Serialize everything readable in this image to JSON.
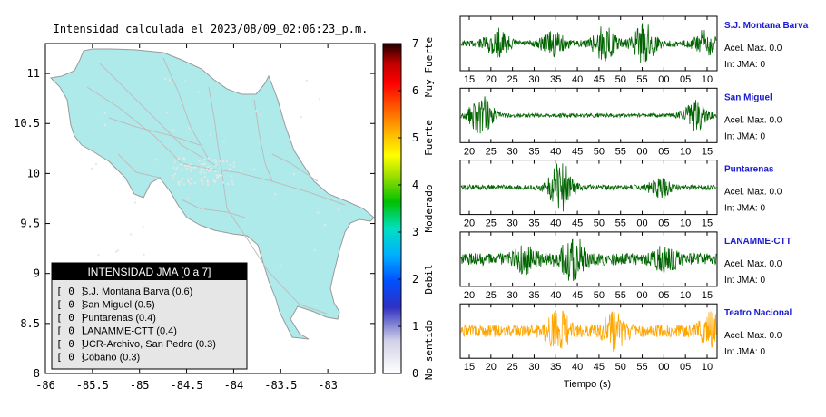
{
  "map": {
    "title": "Intensidad calculada el 2023/08/09_02:06:23_p.m.",
    "x_ticks": [
      "-86",
      "-85.5",
      "-85",
      "-84.5",
      "-84",
      "-83.5",
      "-83"
    ],
    "y_ticks": [
      "11",
      "10.5",
      "10",
      "9.5",
      "9",
      "8.5",
      "8"
    ],
    "xlim": [
      -86,
      -82.5
    ],
    "ylim": [
      8,
      11.3
    ],
    "colors": {
      "land": "#aeeaea",
      "border": "#9a9a9a",
      "roads": "#bdbdbd",
      "dots": "#e6e6e6"
    }
  },
  "legend": {
    "title": "INTENSIDAD JMA [0 a 7]",
    "items": [
      {
        "badge": "[ 0 ]",
        "label": "S.J. Montana Barva (0.6)"
      },
      {
        "badge": "[ 0 ]",
        "label": "San Miguel (0.5)"
      },
      {
        "badge": "[ 0 ]",
        "label": "Puntarenas (0.4)"
      },
      {
        "badge": "[ 0 ]",
        "label": "LANAMME-CTT (0.4)"
      },
      {
        "badge": "[ 0 ]",
        "label": "UCR-Archivo, San Pedro (0.3)"
      },
      {
        "badge": "[ 0 ]",
        "label": "Cobano (0.3)"
      }
    ]
  },
  "colorbar": {
    "ticks": [
      "0",
      "1",
      "2",
      "3",
      "4",
      "5",
      "6",
      "7"
    ],
    "levels": [
      "No sentido",
      "Debil",
      "Moderado",
      "Fuerte",
      "Muy Fuerte"
    ],
    "range": [
      0,
      7
    ]
  },
  "chart_data": {
    "type": "line",
    "xlabel": "Tiempo (s)",
    "y_info_label_accel": "Acel. Max.",
    "y_info_label_int": "Int JMA:",
    "series": [
      {
        "name": "S.J. Montana Barva",
        "color": "#006400",
        "accel_max": "0.0",
        "int_jma": "0",
        "ticks": [
          "15",
          "20",
          "25",
          "30",
          "35",
          "40",
          "45",
          "50",
          "55",
          "00",
          "05",
          "10"
        ],
        "bursts": [
          [
            0.14,
            0.55
          ],
          [
            0.36,
            0.45
          ],
          [
            0.56,
            0.65
          ],
          [
            0.72,
            0.8
          ],
          [
            0.96,
            0.5
          ]
        ],
        "base": 0.12
      },
      {
        "name": "San Miguel",
        "color": "#006400",
        "accel_max": "0.0",
        "int_jma": "0",
        "ticks": [
          "20",
          "25",
          "30",
          "35",
          "40",
          "45",
          "50",
          "55",
          "00",
          "05",
          "10",
          "15"
        ],
        "bursts": [
          [
            0.08,
            0.8
          ],
          [
            0.92,
            0.6
          ]
        ],
        "base": 0.08
      },
      {
        "name": "Puntarenas",
        "color": "#006400",
        "accel_max": "0.0",
        "int_jma": "0",
        "ticks": [
          "20",
          "25",
          "30",
          "35",
          "40",
          "45",
          "50",
          "55",
          "00",
          "05",
          "10",
          "15"
        ],
        "bursts": [
          [
            0.39,
            1.0
          ],
          [
            0.78,
            0.35
          ]
        ],
        "base": 0.1
      },
      {
        "name": "LANAMME-CTT",
        "color": "#006400",
        "accel_max": "0.0",
        "int_jma": "0",
        "ticks": [
          "20",
          "25",
          "30",
          "35",
          "40",
          "45",
          "50",
          "55",
          "00",
          "05",
          "10",
          "15"
        ],
        "bursts": [
          [
            0.44,
            0.85
          ],
          [
            0.25,
            0.4
          ],
          [
            0.8,
            0.4
          ]
        ],
        "base": 0.25
      },
      {
        "name": "Teatro Nacional",
        "color": "#ffa500",
        "accel_max": "0.0",
        "int_jma": "0",
        "ticks": [
          "15",
          "20",
          "25",
          "30",
          "35",
          "40",
          "45",
          "50",
          "55",
          "00",
          "05",
          "10"
        ],
        "bursts": [
          [
            0.38,
            0.7
          ],
          [
            0.6,
            0.6
          ],
          [
            0.98,
            0.6
          ]
        ],
        "base": 0.25
      }
    ]
  }
}
